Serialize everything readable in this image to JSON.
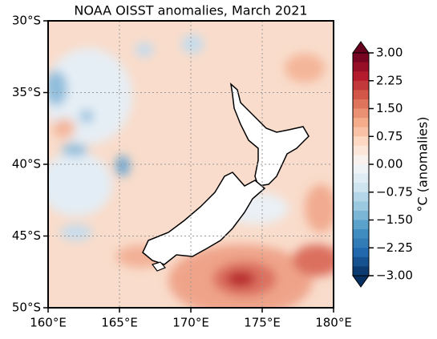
{
  "title": "NOAA OISST anomalies, March 2021",
  "map": {
    "x_ticks": [
      {
        "value": 160,
        "label": "160°E"
      },
      {
        "value": 165,
        "label": "165°E"
      },
      {
        "value": 170,
        "label": "170°E"
      },
      {
        "value": 175,
        "label": "175°E"
      },
      {
        "value": 180,
        "label": "180°E"
      }
    ],
    "y_ticks": [
      {
        "value": -30,
        "label": "30°S"
      },
      {
        "value": -35,
        "label": "35°S"
      },
      {
        "value": -40,
        "label": "40°S"
      },
      {
        "value": -45,
        "label": "45°S"
      },
      {
        "value": -50,
        "label": "50°S"
      }
    ]
  },
  "colorbar": {
    "label": "°C (anomalies)",
    "ticks": [
      {
        "value": 3,
        "label": "3.00"
      },
      {
        "value": 2.25,
        "label": "2.25"
      },
      {
        "value": 1.5,
        "label": "1.50"
      },
      {
        "value": 0.75,
        "label": "0.75"
      },
      {
        "value": 0,
        "label": "0.00"
      },
      {
        "value": -0.75,
        "label": "−0.75"
      },
      {
        "value": -1.5,
        "label": "−1.50"
      },
      {
        "value": -2.25,
        "label": "−2.25"
      },
      {
        "value": -3,
        "label": "−3.00"
      }
    ]
  }
}
